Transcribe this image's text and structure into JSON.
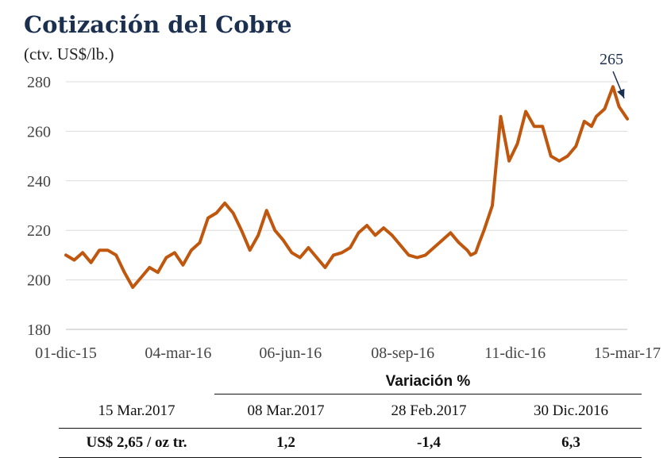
{
  "chart_data": {
    "type": "line",
    "title": "Cotización del Cobre",
    "subtitle": "(ctv. US$/lb.)",
    "xlabel": "",
    "ylabel": "",
    "ylim": [
      180,
      280
    ],
    "yticks": [
      180,
      200,
      220,
      240,
      260,
      280
    ],
    "xticks": [
      "01-dic-15",
      "04-mar-16",
      "06-jun-16",
      "08-sep-16",
      "11-dic-16",
      "15-mar-17"
    ],
    "grid": true,
    "line_color": "#c0570e",
    "annotation": {
      "text": "265",
      "x": "15-mar-17",
      "y": 265
    },
    "x": [
      "2015-12-01",
      "2015-12-08",
      "2015-12-15",
      "2015-12-22",
      "2015-12-29",
      "2016-01-05",
      "2016-01-12",
      "2016-01-19",
      "2016-01-26",
      "2016-02-02",
      "2016-02-09",
      "2016-02-16",
      "2016-02-23",
      "2016-03-01",
      "2016-03-08",
      "2016-03-15",
      "2016-03-22",
      "2016-03-29",
      "2016-04-05",
      "2016-04-12",
      "2016-04-19",
      "2016-04-26",
      "2016-05-03",
      "2016-05-10",
      "2016-05-17",
      "2016-05-24",
      "2016-05-31",
      "2016-06-07",
      "2016-06-14",
      "2016-06-21",
      "2016-06-28",
      "2016-07-05",
      "2016-07-12",
      "2016-07-19",
      "2016-07-26",
      "2016-08-02",
      "2016-08-09",
      "2016-08-16",
      "2016-08-23",
      "2016-08-30",
      "2016-09-06",
      "2016-09-13",
      "2016-09-20",
      "2016-09-27",
      "2016-10-04",
      "2016-10-11",
      "2016-10-18",
      "2016-10-25",
      "2016-11-01",
      "2016-11-04",
      "2016-11-08",
      "2016-11-11",
      "2016-11-15",
      "2016-11-22",
      "2016-11-29",
      "2016-12-06",
      "2016-12-13",
      "2016-12-20",
      "2016-12-27",
      "2017-01-03",
      "2017-01-10",
      "2017-01-17",
      "2017-01-24",
      "2017-01-31",
      "2017-02-07",
      "2017-02-13",
      "2017-02-17",
      "2017-02-24",
      "2017-03-03",
      "2017-03-08",
      "2017-03-15"
    ],
    "series": [
      {
        "name": "",
        "values": [
          210,
          208,
          211,
          207,
          212,
          212,
          210,
          203,
          197,
          201,
          205,
          203,
          209,
          211,
          206,
          212,
          215,
          225,
          227,
          231,
          227,
          220,
          212,
          218,
          228,
          220,
          216,
          211,
          209,
          213,
          209,
          205,
          210,
          211,
          213,
          219,
          222,
          218,
          221,
          218,
          214,
          210,
          209,
          210,
          213,
          216,
          219,
          215,
          212,
          210,
          211,
          215,
          220,
          230,
          266,
          248,
          255,
          268,
          262,
          262,
          250,
          248,
          250,
          254,
          264,
          262,
          266,
          269,
          278,
          270,
          265
        ]
      }
    ]
  },
  "variation_table": {
    "header": "Variación %",
    "current_label": "15 Mar.2017",
    "current_value": "US$ 2,65 / oz tr.",
    "columns": [
      {
        "date": "08 Mar.2017",
        "value": "1,2"
      },
      {
        "date": "28 Feb.2017",
        "value": "-1,4"
      },
      {
        "date": "30 Dic.2016",
        "value": "6,3"
      }
    ]
  }
}
